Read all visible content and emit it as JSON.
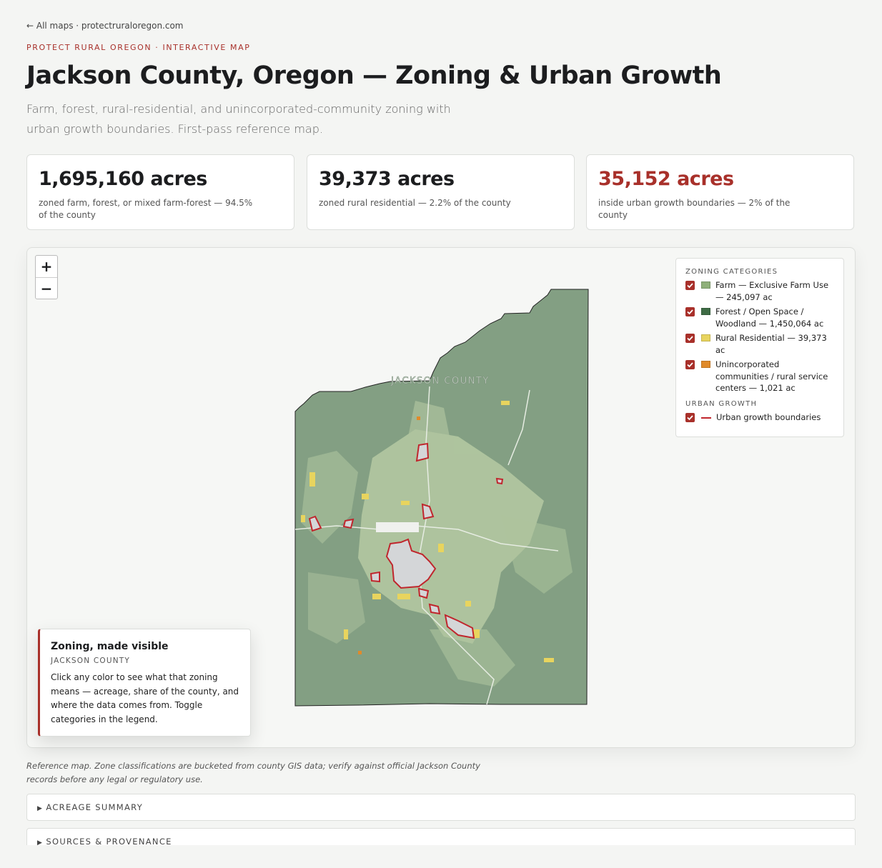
{
  "nav": {
    "back": "← All maps · protectruraloregon.com"
  },
  "header": {
    "eyebrow": "PROTECT RURAL OREGON · INTERACTIVE MAP",
    "title": "Jackson County, Oregon — Zoning & Urban Growth",
    "subtitle": "Farm, forest, rural-residential, and unincorporated-community zoning with urban growth boundaries. First-pass reference map."
  },
  "stats": [
    {
      "value": "1,695,160 acres",
      "caption": "zoned farm, forest, or mixed farm-forest — 94.5% of the county"
    },
    {
      "value": "39,373 acres",
      "caption": "zoned rural residential — 2.2% of the county"
    },
    {
      "value": "35,152 acres",
      "caption": "inside urban growth boundaries — 2% of the county"
    }
  ],
  "map": {
    "label": "JACKSON COUNTY",
    "zoom_in": "+",
    "zoom_out": "−"
  },
  "legend": {
    "heading": "ZONING CATEGORIES",
    "items": [
      {
        "label": "Farm — Exclusive Farm Use — 245,097 ac",
        "color": "#8fb07a"
      },
      {
        "label": "Forest / Open Space / Woodland — 1,450,064 ac",
        "color": "#3e6b45"
      },
      {
        "label": "Rural Residential — 39,373 ac",
        "color": "#e8d45e"
      },
      {
        "label": "Unincorporated communities / rural service centers — 1,021 ac",
        "color": "#e08a2a"
      }
    ],
    "growth_heading": "URBAN GROWTH",
    "growth_items": [
      {
        "label": "Urban growth boundaries",
        "color": "#c0262d"
      }
    ]
  },
  "info": {
    "title": "Zoning, made visible",
    "subtitle": "JACKSON COUNTY",
    "body": "Click any color to see what that zoning means — acreage, share of the county, and where the data comes from. Toggle categories in the legend."
  },
  "note": "Reference map. Zone classifications are bucketed from county GIS data; verify against official Jackson County records before any legal or regulatory use.",
  "sections": [
    "ACREAGE SUMMARY",
    "SOURCES & PROVENANCE"
  ]
}
